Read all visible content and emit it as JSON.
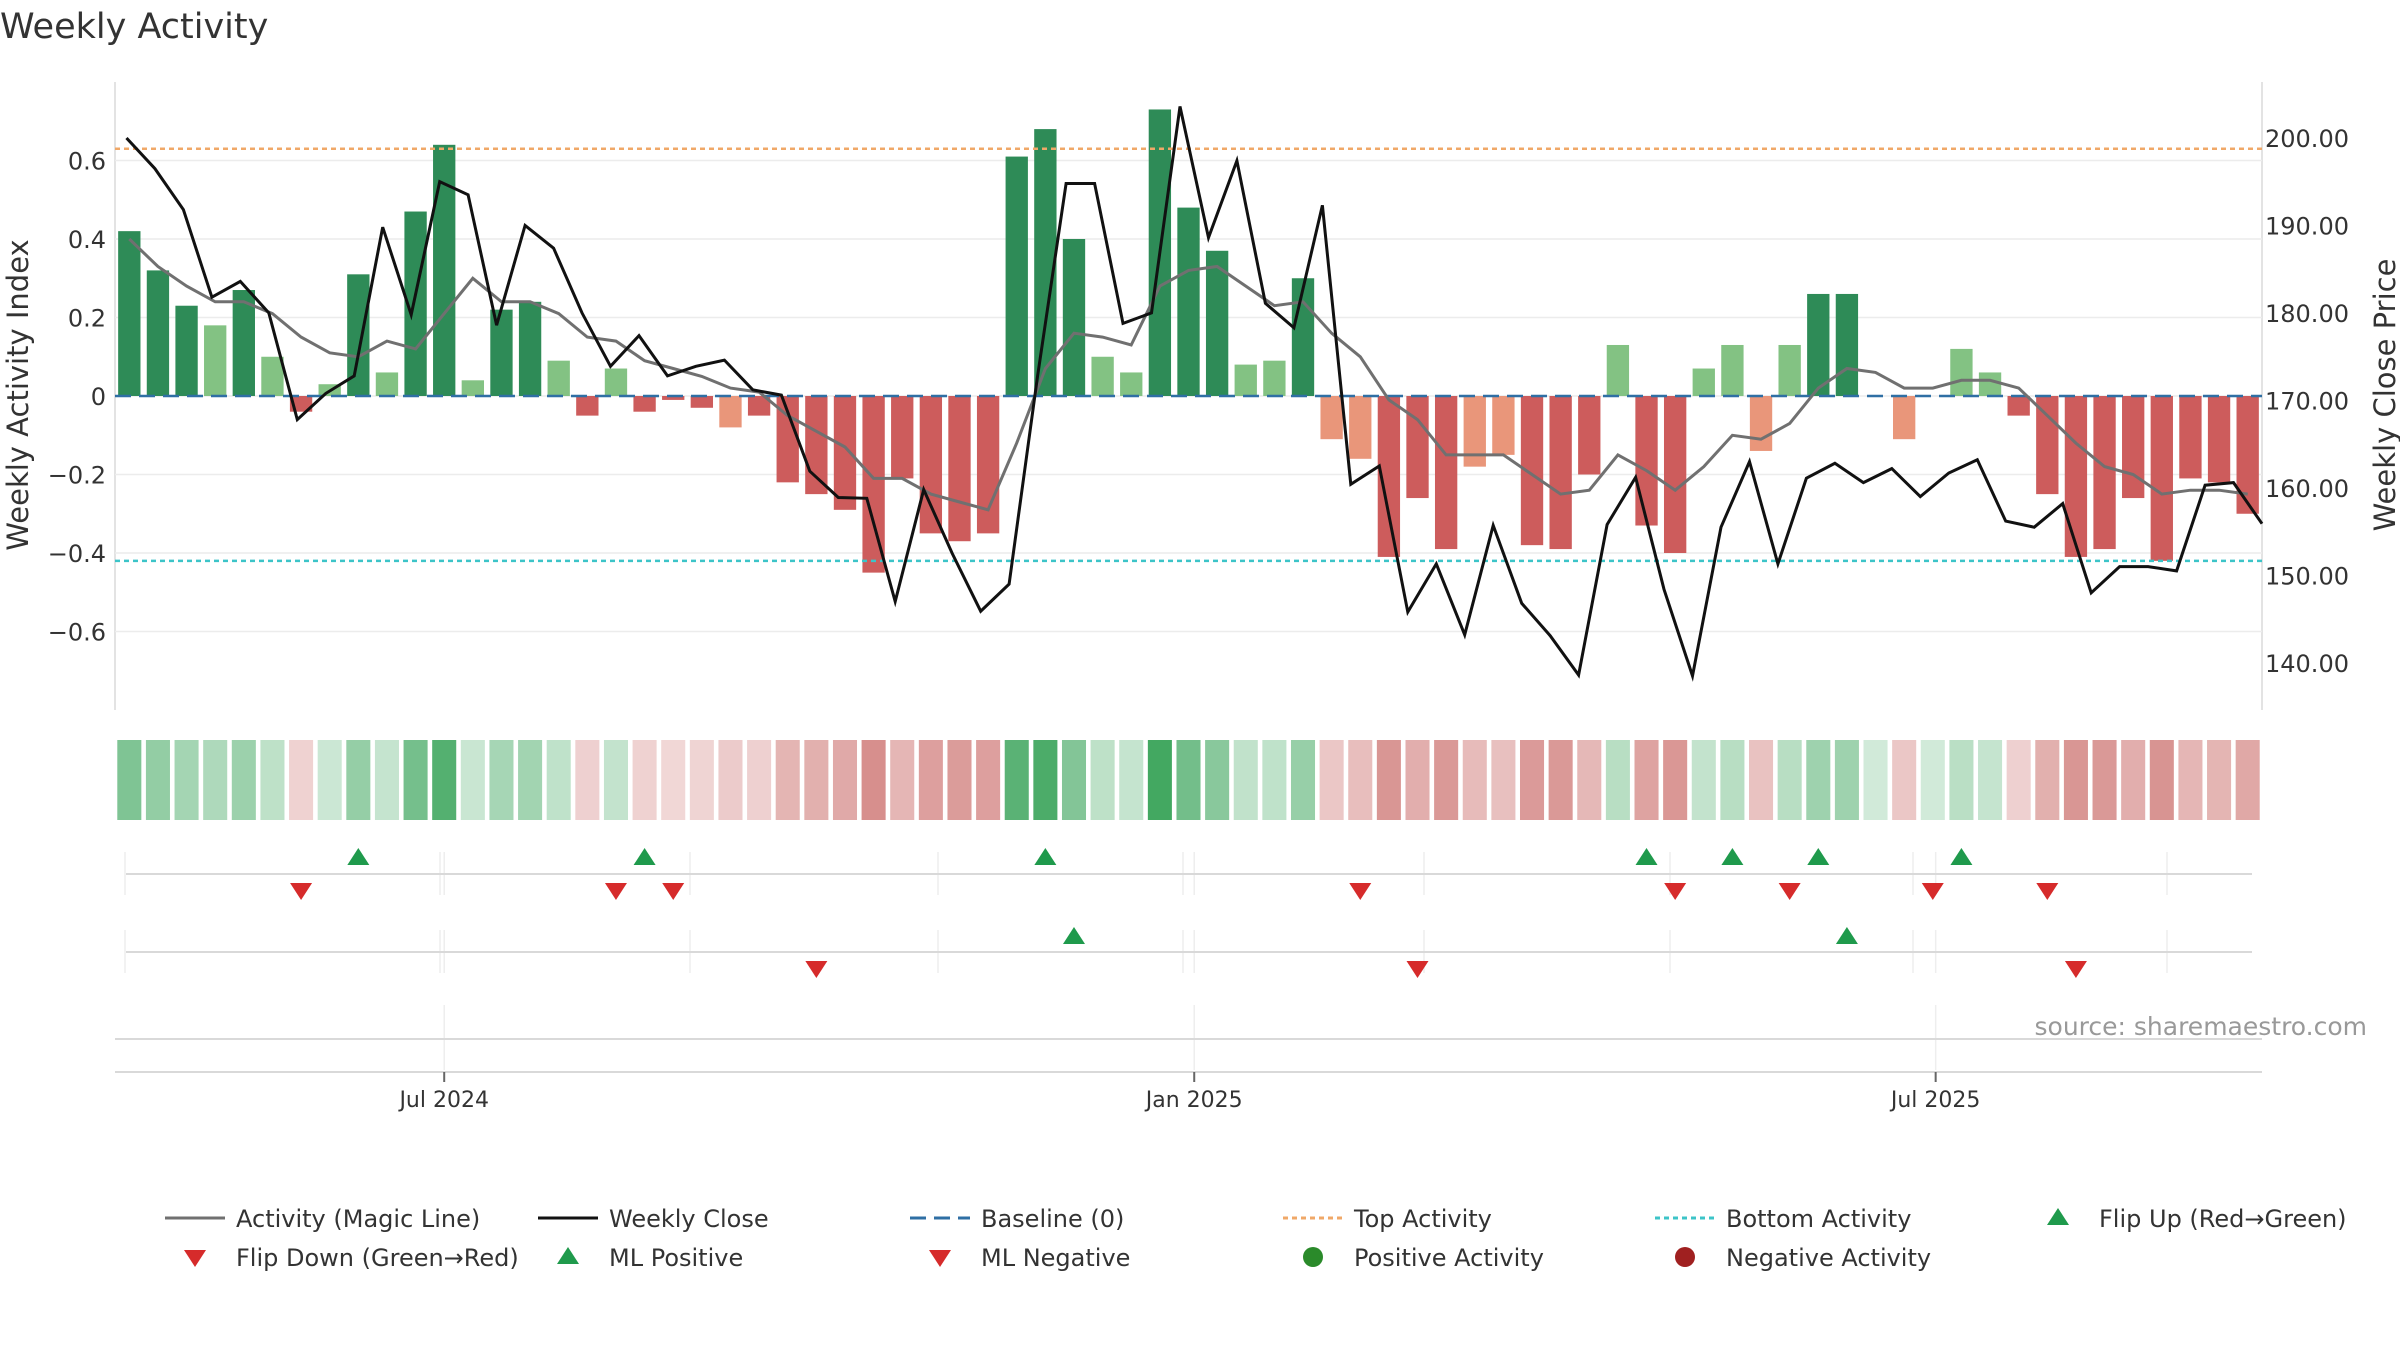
{
  "chart_data": {
    "type": "bar",
    "title": "Weekly Activity",
    "ylabel": "Weekly Activity Index",
    "y2label": "Weekly Close Price",
    "source": "source: sharemaestro.com",
    "ylim": [
      -0.8,
      0.8
    ],
    "y2lim": [
      134.6,
      206.4
    ],
    "y_ticks": [
      0.6,
      0.4,
      0.2,
      0,
      -0.2,
      -0.4,
      -0.6
    ],
    "y_tick_labels": [
      "0.6",
      "0.4",
      "0.2",
      "0",
      "−0.2",
      "−0.4",
      "−0.6"
    ],
    "y2_ticks": [
      200,
      190,
      180,
      170,
      160,
      150,
      140
    ],
    "y2_tick_labels": [
      "200.00",
      "190.00",
      "180.00",
      "170.00",
      "160.00",
      "150.00",
      "140.00"
    ],
    "x_ticks": [
      {
        "index": 11.5,
        "label": "Jul 2024"
      },
      {
        "index": 37.7,
        "label": "Jan 2025"
      },
      {
        "index": 63.6,
        "label": "Jul 2025"
      }
    ],
    "top_activity": 0.63,
    "bottom_activity": -0.42,
    "activity": [
      0.42,
      0.32,
      0.23,
      0.18,
      0.27,
      0.1,
      -0.04,
      0.03,
      0.31,
      0.06,
      0.47,
      0.64,
      0.04,
      0.22,
      0.24,
      0.09,
      -0.05,
      0.07,
      -0.04,
      -0.01,
      -0.03,
      -0.08,
      -0.05,
      -0.22,
      -0.25,
      -0.29,
      -0.45,
      -0.21,
      -0.35,
      -0.37,
      -0.35,
      0.61,
      0.68,
      0.4,
      0.1,
      0.06,
      0.73,
      0.48,
      0.37,
      0.08,
      0.09,
      0.3,
      -0.11,
      -0.16,
      -0.41,
      -0.26,
      -0.39,
      -0.18,
      -0.15,
      -0.38,
      -0.39,
      -0.2,
      0.13,
      -0.33,
      -0.4,
      0.07,
      0.13,
      -0.14,
      0.13,
      0.26,
      0.26,
      0.0,
      -0.11,
      0.0,
      0.12,
      0.06,
      -0.05,
      -0.25,
      -0.41,
      -0.39,
      -0.26,
      -0.42,
      -0.21,
      -0.22,
      -0.3
    ],
    "magic_line": [
      0.4,
      0.33,
      0.28,
      0.24,
      0.24,
      0.21,
      0.15,
      0.11,
      0.1,
      0.14,
      0.12,
      0.21,
      0.3,
      0.24,
      0.24,
      0.21,
      0.15,
      0.14,
      0.09,
      0.07,
      0.05,
      0.02,
      0.01,
      -0.05,
      -0.09,
      -0.13,
      -0.21,
      -0.21,
      -0.25,
      -0.27,
      -0.29,
      -0.12,
      0.07,
      0.16,
      0.15,
      0.13,
      0.28,
      0.32,
      0.33,
      0.28,
      0.23,
      0.24,
      0.16,
      0.1,
      -0.01,
      -0.06,
      -0.15,
      -0.15,
      -0.15,
      -0.2,
      -0.25,
      -0.24,
      -0.15,
      -0.19,
      -0.24,
      -0.18,
      -0.1,
      -0.11,
      -0.07,
      0.02,
      0.07,
      0.06,
      0.02,
      0.02,
      0.04,
      0.04,
      0.02,
      -0.05,
      -0.12,
      -0.18,
      -0.2,
      -0.25,
      -0.24,
      -0.24,
      -0.25
    ],
    "weekly_close": [
      200.0,
      196.5,
      191.8,
      181.8,
      183.6,
      180.0,
      167.8,
      170.8,
      172.8,
      189.8,
      179.8,
      195.0,
      193.5,
      178.6,
      190.0,
      187.4,
      180.0,
      173.9,
      177.4,
      172.8,
      173.9,
      174.6,
      171.2,
      170.6,
      161.9,
      158.9,
      158.8,
      147.0,
      159.8,
      152.5,
      145.9,
      149.0,
      172.8,
      194.8,
      194.8,
      178.8,
      180.0,
      203.6,
      188.6,
      197.4,
      181.1,
      178.3,
      192.3,
      160.4,
      162.5,
      145.8,
      151.3,
      143.2,
      155.7,
      146.8,
      143.1,
      138.6,
      155.8,
      161.2,
      148.4,
      138.5,
      155.5,
      163.0,
      151.3,
      161.1,
      162.8,
      160.6,
      162.2,
      159.0,
      161.7,
      163.2,
      156.2,
      155.5,
      158.2,
      148.0,
      151.0,
      151.0,
      150.5,
      160.3,
      160.6,
      155.9
    ],
    "flip_up": [
      8,
      18,
      32,
      53,
      56,
      59,
      64
    ],
    "flip_down": [
      6,
      17,
      19,
      43,
      54,
      58,
      63,
      67
    ],
    "ml_positive": [
      33,
      60
    ],
    "ml_negative": [
      24,
      45,
      68
    ],
    "legend": [
      {
        "type": "line",
        "label": "Activity (Magic Line)",
        "color": "#707070",
        "dash": ""
      },
      {
        "type": "line",
        "label": "Weekly Close",
        "color": "#111111",
        "dash": ""
      },
      {
        "type": "line",
        "label": "Baseline (0)",
        "color": "#2f6fa4",
        "dash": "16,8"
      },
      {
        "type": "line",
        "label": "Top Activity",
        "color": "#f0a868",
        "dash": "5,4"
      },
      {
        "type": "line",
        "label": "Bottom Activity",
        "color": "#3cc4c8",
        "dash": "5,4"
      },
      {
        "type": "tri-up",
        "label": "Flip Up (Red→Green)",
        "color": "#1f9a4c"
      },
      {
        "type": "tri-down",
        "label": "Flip Down (Green→Red)",
        "color": "#d62b2b"
      },
      {
        "type": "tri-up",
        "label": "ML Positive",
        "color": "#1f9a4c"
      },
      {
        "type": "tri-down",
        "label": "ML Negative",
        "color": "#d62b2b"
      },
      {
        "type": "dot",
        "label": "Positive Activity",
        "color": "#2a8a2a"
      },
      {
        "type": "dot",
        "label": "Negative Activity",
        "color": "#a02020"
      }
    ],
    "colors": {
      "pos_strong": "#2e8b57",
      "pos_light": "#83c283",
      "neg_strong": "#cd5c5c",
      "neg_light": "#e9967a",
      "magic_line": "#707070",
      "close_line": "#111111",
      "baseline": "#2f6fa4",
      "top_line": "#f0a868",
      "bottom_line": "#3cc4c8",
      "up_marker": "#1f9a4c",
      "down_marker": "#d62b2b"
    }
  }
}
